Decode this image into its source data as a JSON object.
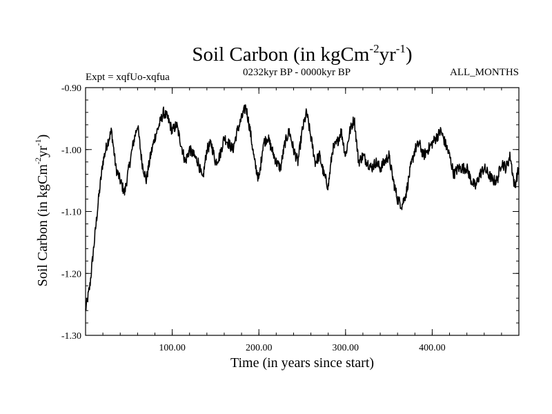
{
  "chart_data": {
    "type": "line",
    "title": "Soil Carbon",
    "title_paren_open": "(in kgCm",
    "title_exp1": "-2",
    "title_unit2": "yr",
    "title_exp2": "-1",
    "title_paren_close": ")",
    "subtitle": "0232kyr BP - 0000kyr BP",
    "left_label": "Expt = xqfUo-xqfua",
    "right_label": "ALL_MONTHS",
    "xlabel": "Time (in years since start)",
    "ylabel_main": "Soil Carbon (in kgCm",
    "ylabel_exp1": "-2",
    "ylabel_unit2": "yr",
    "ylabel_exp2": "-1",
    "ylabel_close": ")",
    "xlim": [
      0,
      500
    ],
    "ylim": [
      -1.3,
      -0.9
    ],
    "x_ticks": [
      100,
      200,
      300,
      400
    ],
    "x_tick_labels": [
      "100.00",
      "200.00",
      "300.00",
      "400.00"
    ],
    "y_ticks": [
      -1.3,
      -1.2,
      -1.1,
      -1.0,
      -0.9
    ],
    "y_tick_labels": [
      "-1.30",
      "-1.20",
      "-1.10",
      "-1.00",
      "-0.90"
    ],
    "x_minor_step": 20,
    "y_minor_step": 0.02,
    "series": [
      {
        "name": "Soil Carbon",
        "x": [
          0,
          5,
          10,
          15,
          20,
          25,
          30,
          35,
          40,
          45,
          50,
          55,
          60,
          65,
          70,
          75,
          80,
          85,
          90,
          95,
          100,
          105,
          110,
          115,
          120,
          125,
          130,
          135,
          140,
          145,
          150,
          155,
          160,
          165,
          170,
          175,
          180,
          185,
          190,
          195,
          200,
          205,
          210,
          215,
          220,
          225,
          230,
          235,
          240,
          245,
          250,
          255,
          260,
          265,
          270,
          275,
          280,
          285,
          290,
          295,
          300,
          305,
          310,
          315,
          320,
          325,
          330,
          335,
          340,
          345,
          350,
          355,
          360,
          365,
          370,
          375,
          380,
          385,
          390,
          395,
          400,
          405,
          410,
          415,
          420,
          425,
          430,
          435,
          440,
          445,
          450,
          455,
          460,
          465,
          470,
          475,
          480,
          485,
          490,
          495,
          500
        ],
        "y": [
          -1.26,
          -1.22,
          -1.15,
          -1.08,
          -1.02,
          -0.99,
          -0.97,
          -1.03,
          -1.05,
          -1.07,
          -1.03,
          -0.99,
          -0.96,
          -1.02,
          -1.05,
          -1.01,
          -0.98,
          -0.96,
          -0.94,
          -0.95,
          -0.97,
          -0.96,
          -0.99,
          -1.02,
          -1.0,
          -1.01,
          -1.02,
          -1.05,
          -1.0,
          -0.99,
          -1.02,
          -1.01,
          -0.98,
          -0.99,
          -1.0,
          -0.97,
          -0.95,
          -0.93,
          -0.97,
          -1.02,
          -1.05,
          -0.99,
          -0.98,
          -1.0,
          -1.02,
          -1.03,
          -0.99,
          -0.97,
          -1.0,
          -1.02,
          -0.97,
          -0.94,
          -0.98,
          -1.02,
          -1.01,
          -1.04,
          -1.06,
          -1.0,
          -0.99,
          -0.97,
          -1.01,
          -0.97,
          -0.95,
          -1.02,
          -1.01,
          -1.02,
          -1.03,
          -1.02,
          -1.03,
          -1.02,
          -1.01,
          -1.05,
          -1.08,
          -1.09,
          -1.07,
          -1.03,
          -1.0,
          -0.99,
          -1.01,
          -1.0,
          -0.99,
          -0.98,
          -0.97,
          -0.99,
          -1.01,
          -1.04,
          -1.03,
          -1.03,
          -1.03,
          -1.05,
          -1.06,
          -1.04,
          -1.03,
          -1.04,
          -1.05,
          -1.05,
          -1.02,
          -1.03,
          -1.01,
          -1.06,
          -1.03
        ]
      }
    ]
  }
}
